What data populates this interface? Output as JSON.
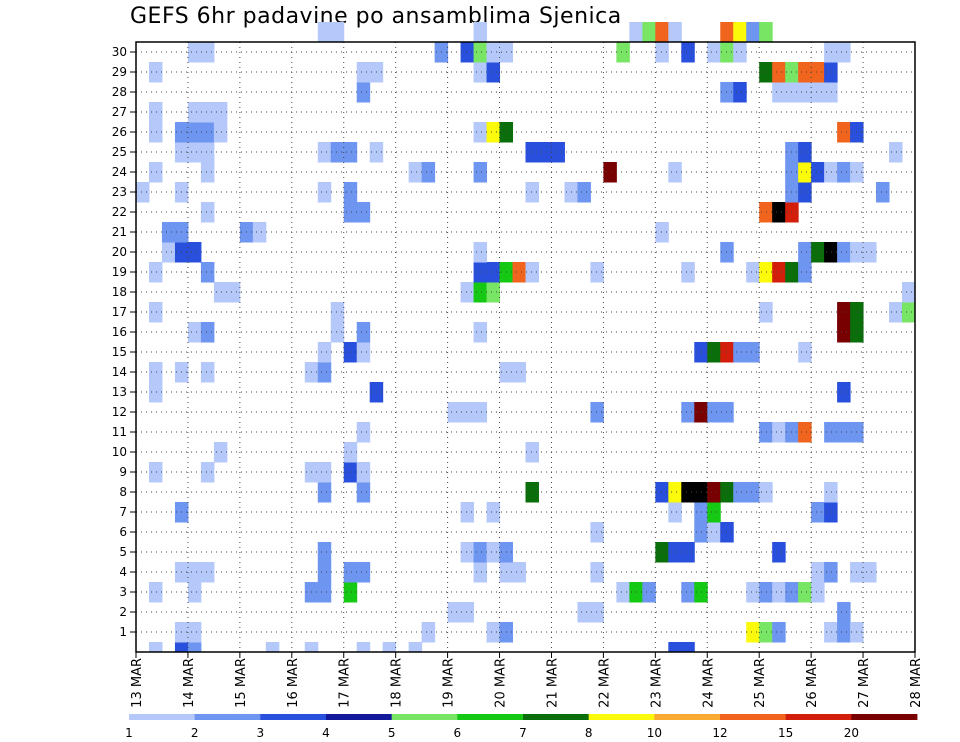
{
  "chart_data": {
    "type": "heatmap",
    "title": "GEFS 6hr padavine po ansamblima Sjenica",
    "y_ticks": [
      "1",
      "2",
      "3",
      "4",
      "5",
      "6",
      "7",
      "8",
      "9",
      "10",
      "11",
      "12",
      "13",
      "14",
      "15",
      "16",
      "17",
      "18",
      "19",
      "20",
      "21",
      "22",
      "23",
      "24",
      "25",
      "26",
      "27",
      "28",
      "29",
      "30"
    ],
    "ylim": [
      0,
      30
    ],
    "x_ticks": [
      "13 MAR",
      "14 MAR",
      "15 MAR",
      "16 MAR",
      "17 MAR",
      "18 MAR",
      "19 MAR",
      "20 MAR",
      "21 MAR",
      "22 MAR",
      "23 MAR",
      "24 MAR",
      "25 MAR",
      "26 MAR",
      "27 MAR",
      "28 MAR"
    ],
    "x_unit": "6-hour step (4 steps per day, starting 13 MAR)",
    "grid": true,
    "colorbar": {
      "labels": [
        "1",
        "2",
        "3",
        "4",
        "5",
        "6",
        "7",
        "8",
        "10",
        "12",
        "15",
        "20"
      ],
      "colors": [
        "#b4c8fa",
        "#6e96f0",
        "#2850dc",
        "#14189a",
        "#78e664",
        "#14c814",
        "#0a6e0a",
        "#fafa0a",
        "#faaa32",
        "#f0641e",
        "#d21e0a",
        "#780000"
      ]
    },
    "cells": [
      [
        1,
        0,
        1
      ],
      [
        3,
        0,
        3
      ],
      [
        4,
        0,
        2
      ],
      [
        10,
        0,
        1
      ],
      [
        13,
        0,
        1
      ],
      [
        17,
        0,
        1
      ],
      [
        19,
        0,
        1
      ],
      [
        21,
        0,
        1
      ],
      [
        41,
        0,
        3
      ],
      [
        42,
        0,
        3
      ],
      [
        3,
        1,
        1
      ],
      [
        4,
        1,
        1
      ],
      [
        22,
        1,
        1
      ],
      [
        27,
        1,
        1
      ],
      [
        28,
        1,
        2
      ],
      [
        47,
        1,
        8
      ],
      [
        48,
        1,
        5
      ],
      [
        49,
        1,
        2
      ],
      [
        53,
        1,
        1
      ],
      [
        54,
        1,
        2
      ],
      [
        55,
        1,
        1
      ],
      [
        24,
        2,
        1
      ],
      [
        25,
        2,
        1
      ],
      [
        34,
        2,
        1
      ],
      [
        35,
        2,
        1
      ],
      [
        54,
        2,
        2
      ],
      [
        1,
        3,
        1
      ],
      [
        4,
        3,
        1
      ],
      [
        13,
        3,
        2
      ],
      [
        14,
        3,
        2
      ],
      [
        16,
        3,
        6
      ],
      [
        37,
        3,
        1
      ],
      [
        38,
        3,
        6
      ],
      [
        39,
        3,
        2
      ],
      [
        42,
        3,
        2
      ],
      [
        43,
        3,
        6
      ],
      [
        47,
        3,
        1
      ],
      [
        48,
        3,
        2
      ],
      [
        49,
        3,
        1
      ],
      [
        50,
        3,
        2
      ],
      [
        51,
        3,
        5
      ],
      [
        52,
        3,
        1
      ],
      [
        3,
        4,
        1
      ],
      [
        4,
        4,
        1
      ],
      [
        5,
        4,
        1
      ],
      [
        14,
        4,
        2
      ],
      [
        16,
        4,
        2
      ],
      [
        17,
        4,
        2
      ],
      [
        26,
        4,
        1
      ],
      [
        28,
        4,
        1
      ],
      [
        29,
        4,
        1
      ],
      [
        35,
        4,
        1
      ],
      [
        52,
        4,
        1
      ],
      [
        53,
        4,
        2
      ],
      [
        55,
        4,
        1
      ],
      [
        56,
        4,
        1
      ],
      [
        14,
        5,
        2
      ],
      [
        25,
        5,
        1
      ],
      [
        26,
        5,
        2
      ],
      [
        27,
        5,
        1
      ],
      [
        28,
        5,
        2
      ],
      [
        40,
        5,
        7
      ],
      [
        41,
        5,
        3
      ],
      [
        42,
        5,
        3
      ],
      [
        49,
        5,
        3
      ],
      [
        35,
        6,
        1
      ],
      [
        43,
        6,
        2
      ],
      [
        44,
        6,
        1
      ],
      [
        45,
        6,
        3
      ],
      [
        3,
        7,
        2
      ],
      [
        25,
        7,
        1
      ],
      [
        27,
        7,
        1
      ],
      [
        41,
        7,
        1
      ],
      [
        43,
        7,
        2
      ],
      [
        44,
        7,
        6
      ],
      [
        52,
        7,
        2
      ],
      [
        53,
        7,
        3
      ],
      [
        14,
        8,
        2
      ],
      [
        17,
        8,
        2
      ],
      [
        30,
        8,
        7
      ],
      [
        40,
        8,
        3
      ],
      [
        41,
        8,
        8
      ],
      [
        42,
        8,
        13
      ],
      [
        43,
        8,
        13
      ],
      [
        44,
        8,
        12
      ],
      [
        45,
        8,
        7
      ],
      [
        46,
        8,
        2
      ],
      [
        47,
        8,
        2
      ],
      [
        48,
        8,
        1
      ],
      [
        53,
        8,
        1
      ],
      [
        1,
        9,
        1
      ],
      [
        5,
        9,
        1
      ],
      [
        13,
        9,
        1
      ],
      [
        14,
        9,
        1
      ],
      [
        16,
        9,
        3
      ],
      [
        17,
        9,
        1
      ],
      [
        6,
        10,
        1
      ],
      [
        16,
        10,
        1
      ],
      [
        30,
        10,
        1
      ],
      [
        17,
        11,
        1
      ],
      [
        48,
        11,
        2
      ],
      [
        49,
        11,
        1
      ],
      [
        50,
        11,
        2
      ],
      [
        51,
        11,
        10
      ],
      [
        53,
        11,
        2
      ],
      [
        54,
        11,
        2
      ],
      [
        55,
        11,
        2
      ],
      [
        24,
        12,
        1
      ],
      [
        25,
        12,
        1
      ],
      [
        26,
        12,
        1
      ],
      [
        35,
        12,
        2
      ],
      [
        42,
        12,
        2
      ],
      [
        43,
        12,
        12
      ],
      [
        44,
        12,
        2
      ],
      [
        45,
        12,
        2
      ],
      [
        1,
        13,
        1
      ],
      [
        18,
        13,
        3
      ],
      [
        54,
        13,
        3
      ],
      [
        1,
        14,
        1
      ],
      [
        3,
        14,
        1
      ],
      [
        5,
        14,
        1
      ],
      [
        13,
        14,
        1
      ],
      [
        14,
        14,
        2
      ],
      [
        28,
        14,
        1
      ],
      [
        29,
        14,
        1
      ],
      [
        14,
        15,
        1
      ],
      [
        16,
        15,
        3
      ],
      [
        17,
        15,
        1
      ],
      [
        43,
        15,
        3
      ],
      [
        44,
        15,
        7
      ],
      [
        45,
        15,
        11
      ],
      [
        46,
        15,
        2
      ],
      [
        47,
        15,
        2
      ],
      [
        51,
        15,
        1
      ],
      [
        4,
        16,
        1
      ],
      [
        5,
        16,
        2
      ],
      [
        15,
        16,
        1
      ],
      [
        17,
        16,
        2
      ],
      [
        26,
        16,
        1
      ],
      [
        54,
        16,
        12
      ],
      [
        55,
        16,
        7
      ],
      [
        1,
        17,
        1
      ],
      [
        15,
        17,
        1
      ],
      [
        48,
        17,
        1
      ],
      [
        54,
        17,
        12
      ],
      [
        55,
        17,
        7
      ],
      [
        58,
        17,
        1
      ],
      [
        59,
        17,
        5
      ],
      [
        6,
        18,
        1
      ],
      [
        7,
        18,
        1
      ],
      [
        25,
        18,
        1
      ],
      [
        26,
        18,
        6
      ],
      [
        27,
        18,
        5
      ],
      [
        59,
        18,
        1
      ],
      [
        1,
        19,
        1
      ],
      [
        5,
        19,
        2
      ],
      [
        26,
        19,
        3
      ],
      [
        27,
        19,
        3
      ],
      [
        28,
        19,
        6
      ],
      [
        29,
        19,
        10
      ],
      [
        30,
        19,
        1
      ],
      [
        35,
        19,
        1
      ],
      [
        42,
        19,
        1
      ],
      [
        47,
        19,
        1
      ],
      [
        48,
        19,
        8
      ],
      [
        49,
        19,
        11
      ],
      [
        50,
        19,
        7
      ],
      [
        51,
        19,
        2
      ],
      [
        2,
        20,
        1
      ],
      [
        3,
        20,
        3
      ],
      [
        4,
        20,
        3
      ],
      [
        26,
        20,
        1
      ],
      [
        45,
        20,
        2
      ],
      [
        51,
        20,
        2
      ],
      [
        52,
        20,
        7
      ],
      [
        53,
        20,
        13
      ],
      [
        54,
        20,
        2
      ],
      [
        55,
        20,
        1
      ],
      [
        56,
        20,
        1
      ],
      [
        2,
        21,
        2
      ],
      [
        3,
        21,
        2
      ],
      [
        8,
        21,
        2
      ],
      [
        9,
        21,
        1
      ],
      [
        40,
        21,
        1
      ],
      [
        5,
        22,
        1
      ],
      [
        16,
        22,
        2
      ],
      [
        17,
        22,
        2
      ],
      [
        48,
        22,
        10
      ],
      [
        49,
        22,
        13
      ],
      [
        50,
        22,
        11
      ],
      [
        0,
        23,
        1
      ],
      [
        3,
        23,
        1
      ],
      [
        14,
        23,
        1
      ],
      [
        16,
        23,
        2
      ],
      [
        30,
        23,
        1
      ],
      [
        33,
        23,
        1
      ],
      [
        34,
        23,
        2
      ],
      [
        50,
        23,
        2
      ],
      [
        51,
        23,
        3
      ],
      [
        57,
        23,
        2
      ],
      [
        1,
        24,
        1
      ],
      [
        5,
        24,
        1
      ],
      [
        21,
        24,
        1
      ],
      [
        22,
        24,
        2
      ],
      [
        26,
        24,
        2
      ],
      [
        36,
        24,
        12
      ],
      [
        41,
        24,
        1
      ],
      [
        50,
        24,
        2
      ],
      [
        51,
        24,
        8
      ],
      [
        52,
        24,
        3
      ],
      [
        53,
        24,
        1
      ],
      [
        54,
        24,
        2
      ],
      [
        55,
        24,
        1
      ],
      [
        3,
        25,
        1
      ],
      [
        4,
        25,
        1
      ],
      [
        5,
        25,
        1
      ],
      [
        14,
        25,
        1
      ],
      [
        15,
        25,
        2
      ],
      [
        16,
        25,
        2
      ],
      [
        18,
        25,
        1
      ],
      [
        30,
        25,
        3
      ],
      [
        31,
        25,
        3
      ],
      [
        32,
        25,
        3
      ],
      [
        50,
        25,
        2
      ],
      [
        51,
        25,
        3
      ],
      [
        58,
        25,
        1
      ],
      [
        1,
        26,
        1
      ],
      [
        3,
        26,
        2
      ],
      [
        4,
        26,
        2
      ],
      [
        5,
        26,
        2
      ],
      [
        6,
        26,
        1
      ],
      [
        26,
        26,
        1
      ],
      [
        27,
        26,
        8
      ],
      [
        28,
        26,
        7
      ],
      [
        54,
        26,
        10
      ],
      [
        55,
        26,
        3
      ],
      [
        1,
        27,
        1
      ],
      [
        4,
        27,
        1
      ],
      [
        5,
        27,
        1
      ],
      [
        6,
        27,
        1
      ],
      [
        17,
        28,
        2
      ],
      [
        45,
        28,
        2
      ],
      [
        46,
        28,
        3
      ],
      [
        49,
        28,
        1
      ],
      [
        50,
        28,
        1
      ],
      [
        51,
        28,
        1
      ],
      [
        52,
        28,
        1
      ],
      [
        53,
        28,
        1
      ],
      [
        1,
        29,
        1
      ],
      [
        17,
        29,
        1
      ],
      [
        18,
        29,
        1
      ],
      [
        26,
        29,
        1
      ],
      [
        27,
        29,
        3
      ],
      [
        48,
        29,
        7
      ],
      [
        49,
        29,
        10
      ],
      [
        50,
        29,
        5
      ],
      [
        51,
        29,
        10
      ],
      [
        52,
        29,
        10
      ],
      [
        53,
        29,
        3
      ],
      [
        4,
        30,
        1
      ],
      [
        5,
        30,
        1
      ],
      [
        23,
        30,
        2
      ],
      [
        25,
        30,
        3
      ],
      [
        26,
        30,
        5
      ],
      [
        27,
        30,
        1
      ],
      [
        28,
        30,
        1
      ],
      [
        37,
        30,
        5
      ],
      [
        40,
        30,
        1
      ],
      [
        42,
        30,
        3
      ],
      [
        44,
        30,
        1
      ],
      [
        45,
        30,
        5
      ],
      [
        46,
        30,
        1
      ],
      [
        53,
        30,
        1
      ],
      [
        54,
        30,
        1
      ],
      [
        14,
        31,
        1
      ],
      [
        15,
        31,
        1
      ],
      [
        26,
        31,
        1
      ],
      [
        38,
        31,
        1
      ],
      [
        39,
        31,
        5
      ],
      [
        40,
        31,
        10
      ],
      [
        41,
        31,
        1
      ],
      [
        45,
        31,
        10
      ],
      [
        46,
        31,
        8
      ],
      [
        47,
        31,
        2
      ],
      [
        48,
        31,
        5
      ]
    ]
  }
}
